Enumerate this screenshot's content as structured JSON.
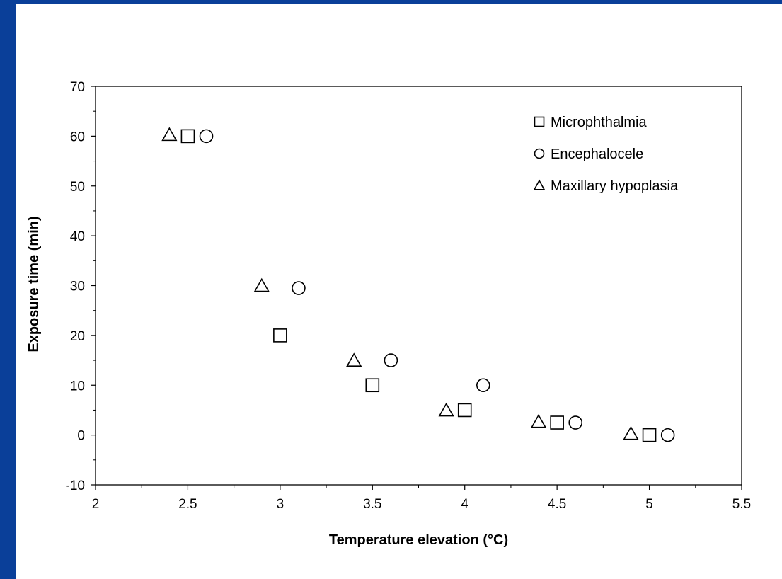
{
  "frame": {
    "accent_color": "#0a3f99"
  },
  "chart_data": {
    "type": "scatter",
    "title": "",
    "xlabel": "Temperature elevation (°C)",
    "ylabel": "Exposure time (min)",
    "xlim": [
      2,
      5.5
    ],
    "ylim": [
      -10,
      70
    ],
    "xticks": [
      "2",
      "2.5",
      "3",
      "3.5",
      "4",
      "4.5",
      "5",
      "5.5"
    ],
    "yticks": [
      "-10",
      "0",
      "10",
      "20",
      "30",
      "40",
      "50",
      "60",
      "70"
    ],
    "grid": false,
    "legend_position": "top-right",
    "series": [
      {
        "name": "Microphthalmia",
        "marker": "square",
        "points": [
          [
            2.5,
            60
          ],
          [
            3.0,
            20
          ],
          [
            3.5,
            10
          ],
          [
            4.0,
            5
          ],
          [
            4.5,
            2.5
          ],
          [
            5.0,
            0
          ]
        ]
      },
      {
        "name": "Encephalocele",
        "marker": "circle",
        "points": [
          [
            2.6,
            60
          ],
          [
            3.1,
            29.5
          ],
          [
            3.6,
            15
          ],
          [
            4.1,
            10
          ],
          [
            4.6,
            2.5
          ],
          [
            5.1,
            0
          ]
        ]
      },
      {
        "name": "Maxillary hypoplasia",
        "marker": "triangle",
        "points": [
          [
            2.4,
            60.3
          ],
          [
            2.9,
            30
          ],
          [
            3.4,
            15
          ],
          [
            3.9,
            5
          ],
          [
            4.4,
            2.7
          ],
          [
            4.9,
            0.3
          ]
        ]
      }
    ]
  }
}
